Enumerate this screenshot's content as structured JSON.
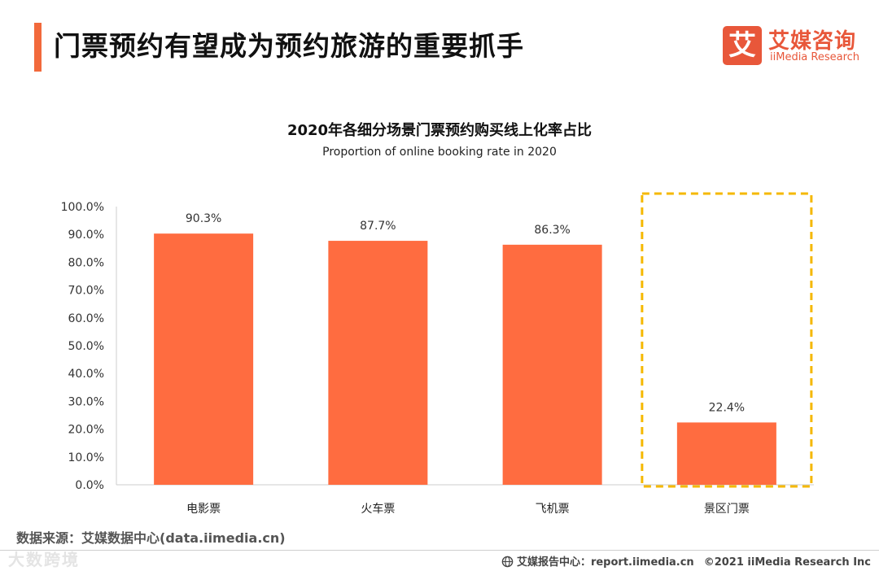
{
  "header": {
    "title": "门票预约有望成为预约旅游的重要抓手",
    "accent_color": "#F2693B"
  },
  "logo": {
    "mark": "艾",
    "name_cn": "艾媒咨询",
    "name_en": "iiMedia Research",
    "color": "#E8573A"
  },
  "chart_data": {
    "type": "bar",
    "title": "2020年各细分场景门票预约购买线上化率占比",
    "subtitle": "Proportion of online booking rate in 2020",
    "categories": [
      "电影票",
      "火车票",
      "飞机票",
      "景区门票"
    ],
    "values": [
      90.3,
      87.7,
      86.3,
      22.4
    ],
    "value_labels": [
      "90.3%",
      "87.7%",
      "86.3%",
      "22.4%"
    ],
    "ylim": [
      0,
      100
    ],
    "yticks": [
      "100.0%",
      "90.0%",
      "80.0%",
      "70.0%",
      "60.0%",
      "50.0%",
      "40.0%",
      "30.0%",
      "20.0%",
      "10.0%",
      "0.0%"
    ],
    "xlabel": "",
    "ylabel": "",
    "grid": false,
    "bar_color": "#FF6C40",
    "highlight": {
      "category": "景区门票",
      "style": "dashed-box",
      "color": "#F5B800"
    }
  },
  "source": "数据来源：艾媒数据中心(data.iimedia.cn)",
  "watermark": "大数跨境",
  "footer": {
    "report_center": "艾媒报告中心：report.iimedia.cn",
    "copyright": "©2021  iiMedia Research  Inc"
  }
}
